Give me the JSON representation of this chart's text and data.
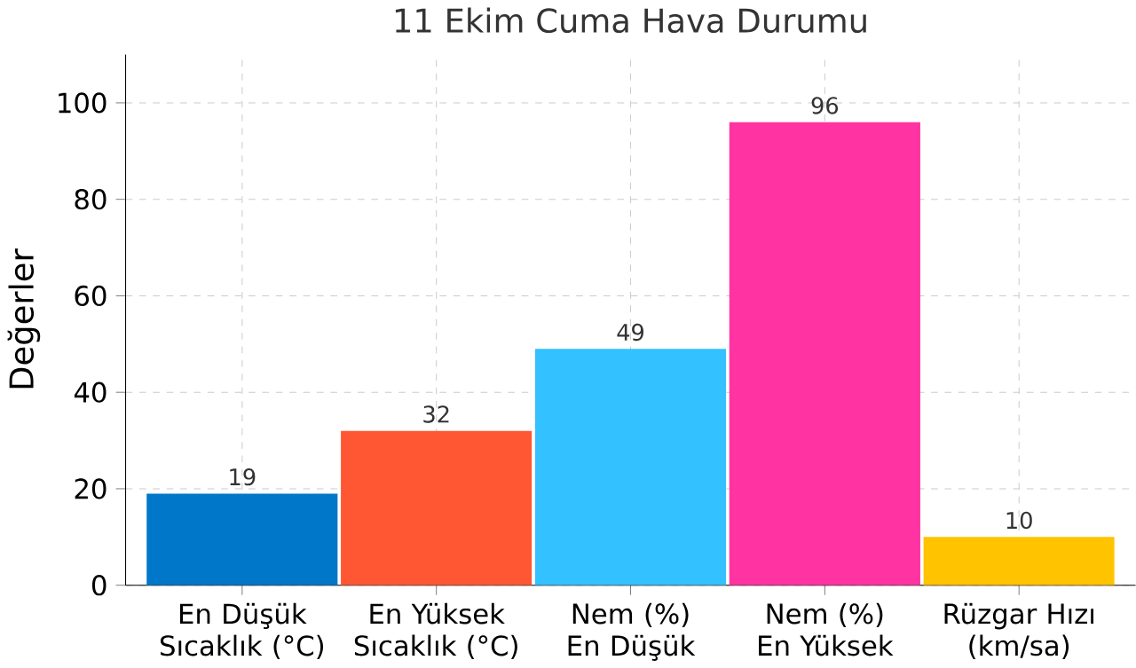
{
  "chart_data": {
    "type": "bar",
    "title": "11 Ekim Cuma Hava Durumu",
    "ylabel": "Değerler",
    "categories": [
      "En Düşük Sıcaklık (°C)",
      "En Yüksek Sıcaklık (°C)",
      "Nem (%) En Düşük",
      "Nem (%) En Yüksek",
      "Rüzgar Hızı (km/sa)"
    ],
    "values": [
      19,
      32,
      49,
      96,
      10
    ],
    "colors": [
      "#0077c8",
      "#ff5733",
      "#33c1ff",
      "#ff33a1",
      "#ffc300"
    ],
    "ylim": [
      0,
      110
    ],
    "yticks": [
      0,
      20,
      40,
      60,
      80,
      100
    ],
    "grid": true,
    "data_labels": true
  }
}
